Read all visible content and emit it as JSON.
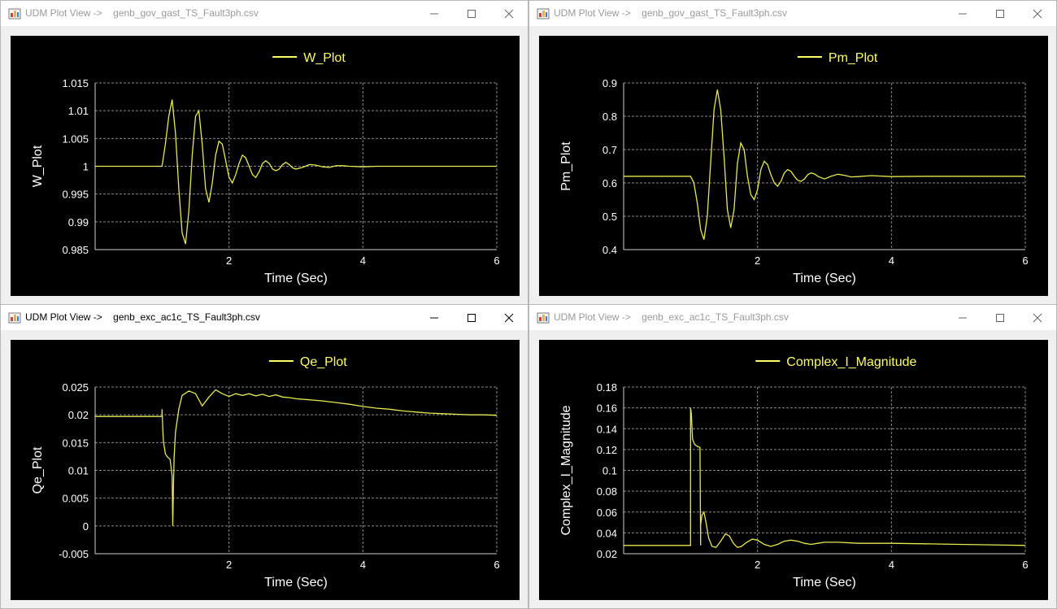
{
  "windows": [
    {
      "title": "UDM Plot View ->    genb_gov_gast_TS_Fault3ph.csv",
      "active": false,
      "chart_data": {
        "type": "line",
        "title": "W_Plot",
        "xlabel": "Time (Sec)",
        "ylabel": "W_Plot",
        "xlim": [
          0,
          6
        ],
        "ylim": [
          0.985,
          1.015
        ],
        "xticks": [
          2,
          4,
          6
        ],
        "xtick_labels": [
          "2",
          "4",
          "6"
        ],
        "yticks": [
          0.985,
          0.99,
          0.995,
          1,
          1.005,
          1.01,
          1.015
        ],
        "ytick_labels": [
          "0.985",
          "0.99",
          "0.995",
          "1",
          "1.005",
          "1.01",
          "1.015"
        ],
        "grid": true,
        "legend": "top-center",
        "series": [
          {
            "name": "W_Plot",
            "color": "#e8e850",
            "x": [
              0,
              1,
              1.05,
              1.1,
              1.15,
              1.2,
              1.25,
              1.3,
              1.35,
              1.4,
              1.45,
              1.5,
              1.55,
              1.6,
              1.65,
              1.7,
              1.75,
              1.8,
              1.85,
              1.9,
              1.95,
              2.0,
              2.05,
              2.1,
              2.15,
              2.2,
              2.25,
              2.3,
              2.35,
              2.4,
              2.45,
              2.5,
              2.55,
              2.6,
              2.65,
              2.7,
              2.75,
              2.8,
              2.85,
              2.9,
              2.95,
              3.0,
              3.1,
              3.2,
              3.3,
              3.4,
              3.5,
              3.6,
              3.7,
              3.8,
              4.0,
              4.2,
              4.5,
              5.0,
              5.5,
              6.0
            ],
            "y": [
              1.0,
              1.0,
              1.004,
              1.009,
              1.012,
              1.006,
              0.996,
              0.988,
              0.986,
              0.992,
              1.002,
              1.009,
              1.01,
              1.004,
              0.996,
              0.9935,
              0.997,
              1.002,
              1.0045,
              1.004,
              1.001,
              0.998,
              0.997,
              0.9985,
              1.0005,
              1.002,
              1.0015,
              1.0,
              0.9985,
              0.998,
              0.999,
              1.0005,
              1.001,
              1.0005,
              0.9995,
              0.9992,
              0.9995,
              1.0003,
              1.0007,
              1.0003,
              0.9997,
              0.9995,
              0.9998,
              1.0003,
              1.0002,
              0.9999,
              0.9998,
              1.0001,
              1.0001,
              1.0,
              0.9999,
              1.0,
              1.0,
              1.0,
              1.0,
              1.0
            ]
          }
        ]
      }
    },
    {
      "title": "UDM Plot View ->    genb_gov_gast_TS_Fault3ph.csv",
      "active": false,
      "chart_data": {
        "type": "line",
        "title": "Pm_Plot",
        "xlabel": "Time (Sec)",
        "ylabel": "Pm_Plot",
        "xlim": [
          0,
          6
        ],
        "ylim": [
          0.4,
          0.9
        ],
        "xticks": [
          2,
          4,
          6
        ],
        "xtick_labels": [
          "2",
          "4",
          "6"
        ],
        "yticks": [
          0.4,
          0.5,
          0.6,
          0.7,
          0.8,
          0.9
        ],
        "ytick_labels": [
          "0.4",
          "0.5",
          "0.6",
          "0.7",
          "0.8",
          "0.9"
        ],
        "grid": true,
        "legend": "top-center",
        "series": [
          {
            "name": "Pm_Plot",
            "color": "#e8e850",
            "x": [
              0,
              1.0,
              1.05,
              1.1,
              1.15,
              1.2,
              1.25,
              1.3,
              1.35,
              1.4,
              1.45,
              1.5,
              1.55,
              1.6,
              1.65,
              1.7,
              1.75,
              1.8,
              1.85,
              1.9,
              1.95,
              2.0,
              2.05,
              2.1,
              2.15,
              2.2,
              2.25,
              2.3,
              2.35,
              2.4,
              2.45,
              2.5,
              2.55,
              2.6,
              2.65,
              2.7,
              2.75,
              2.8,
              2.85,
              2.9,
              3.0,
              3.1,
              3.2,
              3.3,
              3.4,
              3.5,
              3.7,
              4.0,
              4.5,
              5.0,
              6.0
            ],
            "y": [
              0.62,
              0.62,
              0.6,
              0.54,
              0.46,
              0.43,
              0.5,
              0.66,
              0.82,
              0.88,
              0.82,
              0.68,
              0.52,
              0.465,
              0.52,
              0.66,
              0.72,
              0.7,
              0.62,
              0.565,
              0.55,
              0.58,
              0.64,
              0.665,
              0.655,
              0.625,
              0.6,
              0.59,
              0.605,
              0.63,
              0.64,
              0.635,
              0.62,
              0.608,
              0.605,
              0.612,
              0.625,
              0.63,
              0.627,
              0.62,
              0.612,
              0.62,
              0.626,
              0.623,
              0.618,
              0.619,
              0.622,
              0.619,
              0.62,
              0.62,
              0.62
            ]
          }
        ]
      }
    },
    {
      "title": "UDM Plot View ->    genb_exc_ac1c_TS_Fault3ph.csv",
      "active": true,
      "chart_data": {
        "type": "line",
        "title": "Qe_Plot",
        "xlabel": "Time (Sec)",
        "ylabel": "Qe_Plot",
        "xlim": [
          0,
          6
        ],
        "ylim": [
          -0.005,
          0.025
        ],
        "xticks": [
          2,
          4,
          6
        ],
        "xtick_labels": [
          "2",
          "4",
          "6"
        ],
        "yticks": [
          -0.005,
          0,
          0.005,
          0.01,
          0.015,
          0.02,
          0.025
        ],
        "ytick_labels": [
          "-0.005",
          "0",
          "0.005",
          "0.01",
          "0.015",
          "0.02",
          "0.025"
        ],
        "grid": true,
        "legend": "top-center",
        "series": [
          {
            "name": "Qe_Plot",
            "color": "#e8e850",
            "x": [
              0,
              1.0,
              1.0,
              1.01,
              1.02,
              1.05,
              1.08,
              1.12,
              1.15,
              1.16,
              1.17,
              1.18,
              1.2,
              1.25,
              1.3,
              1.4,
              1.5,
              1.6,
              1.7,
              1.8,
              1.9,
              2.0,
              2.1,
              2.2,
              2.3,
              2.4,
              2.5,
              2.6,
              2.7,
              2.8,
              2.9,
              3.0,
              3.2,
              3.4,
              3.6,
              3.8,
              4.0,
              4.2,
              4.4,
              4.6,
              4.8,
              5.0,
              5.2,
              5.4,
              5.6,
              5.8,
              6.0
            ],
            "y": [
              0.0197,
              0.0197,
              0.021,
              0.0175,
              0.0152,
              0.013,
              0.0124,
              0.012,
              0.009,
              0.0,
              0.007,
              0.0125,
              0.0168,
              0.021,
              0.0235,
              0.0243,
              0.0238,
              0.0216,
              0.0232,
              0.0245,
              0.0238,
              0.0233,
              0.0238,
              0.0235,
              0.0238,
              0.0234,
              0.0237,
              0.0233,
              0.0236,
              0.0232,
              0.0231,
              0.0229,
              0.0227,
              0.0225,
              0.0222,
              0.0219,
              0.0215,
              0.0212,
              0.021,
              0.0207,
              0.0205,
              0.0203,
              0.0202,
              0.0201,
              0.02,
              0.02,
              0.0199
            ]
          }
        ]
      }
    },
    {
      "title": "UDM Plot View ->    genb_exc_ac1c_TS_Fault3ph.csv",
      "active": false,
      "chart_data": {
        "type": "line",
        "title": "Complex_I_Magnitude",
        "xlabel": "Time (Sec)",
        "ylabel": "Complex_I_Magnitude",
        "xlim": [
          0,
          6
        ],
        "ylim": [
          0.02,
          0.18
        ],
        "xticks": [
          2,
          4,
          6
        ],
        "xtick_labels": [
          "2",
          "4",
          "6"
        ],
        "yticks": [
          0.02,
          0.04,
          0.06,
          0.08,
          0.1,
          0.12,
          0.14,
          0.16,
          0.18
        ],
        "ytick_labels": [
          "0.02",
          "0.04",
          "0.06",
          "0.08",
          "0.1",
          "0.12",
          "0.14",
          "0.16",
          "0.18"
        ],
        "grid": true,
        "legend": "top-center",
        "series": [
          {
            "name": "Complex_I_Magnitude",
            "color": "#e8e850",
            "x": [
              0,
              1.0,
              1.0,
              1.01,
              1.03,
              1.06,
              1.1,
              1.14,
              1.15,
              1.15,
              1.17,
              1.2,
              1.23,
              1.27,
              1.32,
              1.38,
              1.45,
              1.52,
              1.58,
              1.64,
              1.7,
              1.76,
              1.84,
              1.92,
              2.0,
              2.1,
              2.2,
              2.3,
              2.4,
              2.5,
              2.6,
              2.7,
              2.8,
              2.9,
              3.0,
              3.2,
              3.5,
              4.0,
              4.5,
              5.0,
              5.5,
              6.0
            ],
            "y": [
              0.028,
              0.028,
              0.16,
              0.155,
              0.13,
              0.125,
              0.123,
              0.122,
              0.028,
              0.048,
              0.057,
              0.06,
              0.05,
              0.035,
              0.027,
              0.026,
              0.032,
              0.039,
              0.037,
              0.03,
              0.026,
              0.027,
              0.031,
              0.034,
              0.033,
              0.029,
              0.027,
              0.029,
              0.032,
              0.033,
              0.032,
              0.03,
              0.029,
              0.03,
              0.031,
              0.031,
              0.03,
              0.03,
              0.0295,
              0.029,
              0.0285,
              0.028
            ]
          }
        ]
      }
    }
  ]
}
